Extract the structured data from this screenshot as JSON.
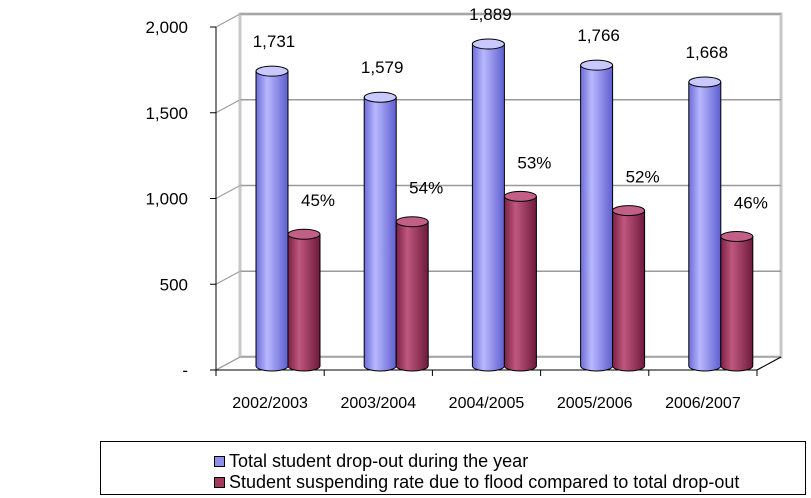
{
  "chart_data": {
    "type": "bar",
    "title": "",
    "xlabel": "",
    "ylabel": "",
    "ylim": [
      0,
      2000
    ],
    "yticks": [
      0,
      500,
      1000,
      1500,
      2000
    ],
    "ytick_labels": [
      "-",
      "500",
      "1,000",
      "1,500",
      "2,000"
    ],
    "categories": [
      "2002/2003",
      "2003/2004",
      "2004/2005",
      "2005/2006",
      "2006/2007"
    ],
    "grid": true,
    "legend_position": "bottom",
    "style": "3d-cylinder",
    "series": [
      {
        "name": "Total student drop-out during the year",
        "values": [
          1731,
          1579,
          1889,
          1766,
          1668
        ],
        "data_labels": [
          "1,731",
          "1,579",
          "1,889",
          "1,766",
          "1,668"
        ],
        "color": "#8f8fe8"
      },
      {
        "name": "Student suspending rate due to flood compared to total drop-out",
        "values": [
          780,
          853,
          1001,
          918,
          767
        ],
        "data_labels": [
          "45%",
          "54%",
          "53%",
          "52%",
          "46%"
        ],
        "color": "#a33a5e"
      }
    ]
  }
}
